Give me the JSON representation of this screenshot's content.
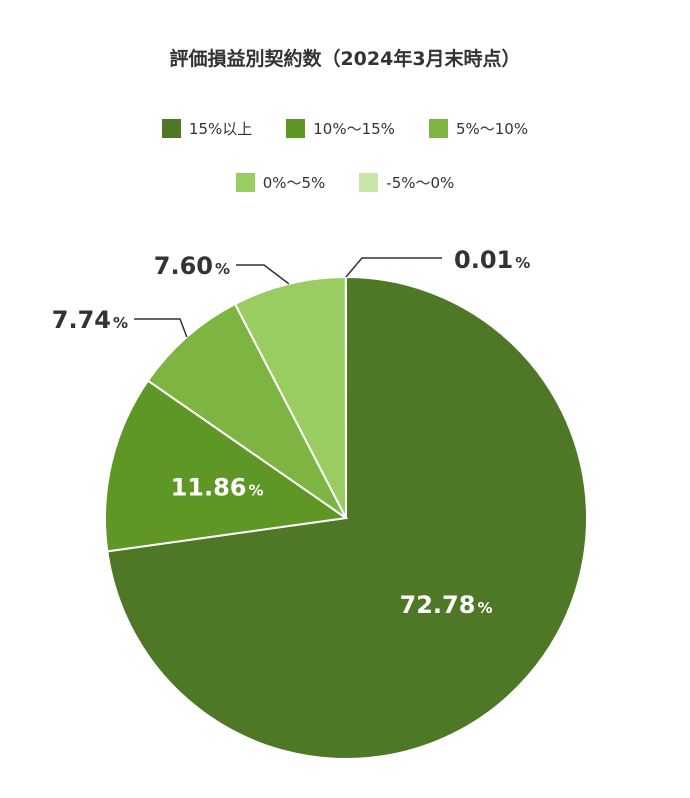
{
  "chart_data": {
    "type": "pie",
    "title": "評価損益別契約数（2024年3月末時点）",
    "series": [
      {
        "name": "15%以上",
        "value": 72.78,
        "label": "72.78",
        "color": "#4e7726"
      },
      {
        "name": "10%〜15%",
        "value": 11.86,
        "label": "11.86",
        "color": "#5f9726"
      },
      {
        "name": "5%〜10%",
        "value": 7.74,
        "label": "7.74",
        "color": "#7db442"
      },
      {
        "name": "0%〜5%",
        "value": 7.6,
        "label": "7.60",
        "color": "#9acd61"
      },
      {
        "name": "-5%〜0%",
        "value": 0.01,
        "label": "0.01",
        "color": "#c8e6aa"
      }
    ],
    "unit": "%",
    "legend_position": "top"
  }
}
